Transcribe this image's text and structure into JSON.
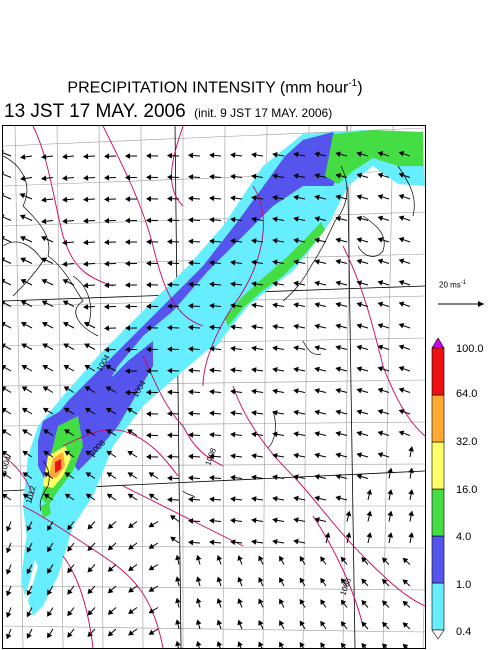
{
  "header": {
    "title_main": "PRECIPITATION INTENSITY (mm hour",
    "title_sup": "-1",
    "title_close": ")",
    "valid_time": "13 JST 17 MAY. 2006",
    "init_time": "(init. 9 JST 17 MAY. 2006)"
  },
  "reference_vector": {
    "label": "20 ms",
    "label_sup": "-1"
  },
  "legend": {
    "unit": "mm hour-1",
    "levels": [
      "0.4",
      "1.0",
      "4.0",
      "16.0",
      "32.0",
      "64.0",
      "100.0"
    ],
    "colors": [
      "#66eeff",
      "#5555ee",
      "#44dd44",
      "#ffff66",
      "#ffaa33",
      "#ee1111",
      "#cc00ee"
    ],
    "under_color": "#ffffff",
    "over_color": "#cc00ee"
  },
  "map": {
    "contour_labels": [
      "1004",
      "1004",
      "1008",
      "1004",
      "1012",
      "1008",
      "1008"
    ],
    "isobar_color": "#cc0066",
    "wind_vector_color": "#000000"
  }
}
